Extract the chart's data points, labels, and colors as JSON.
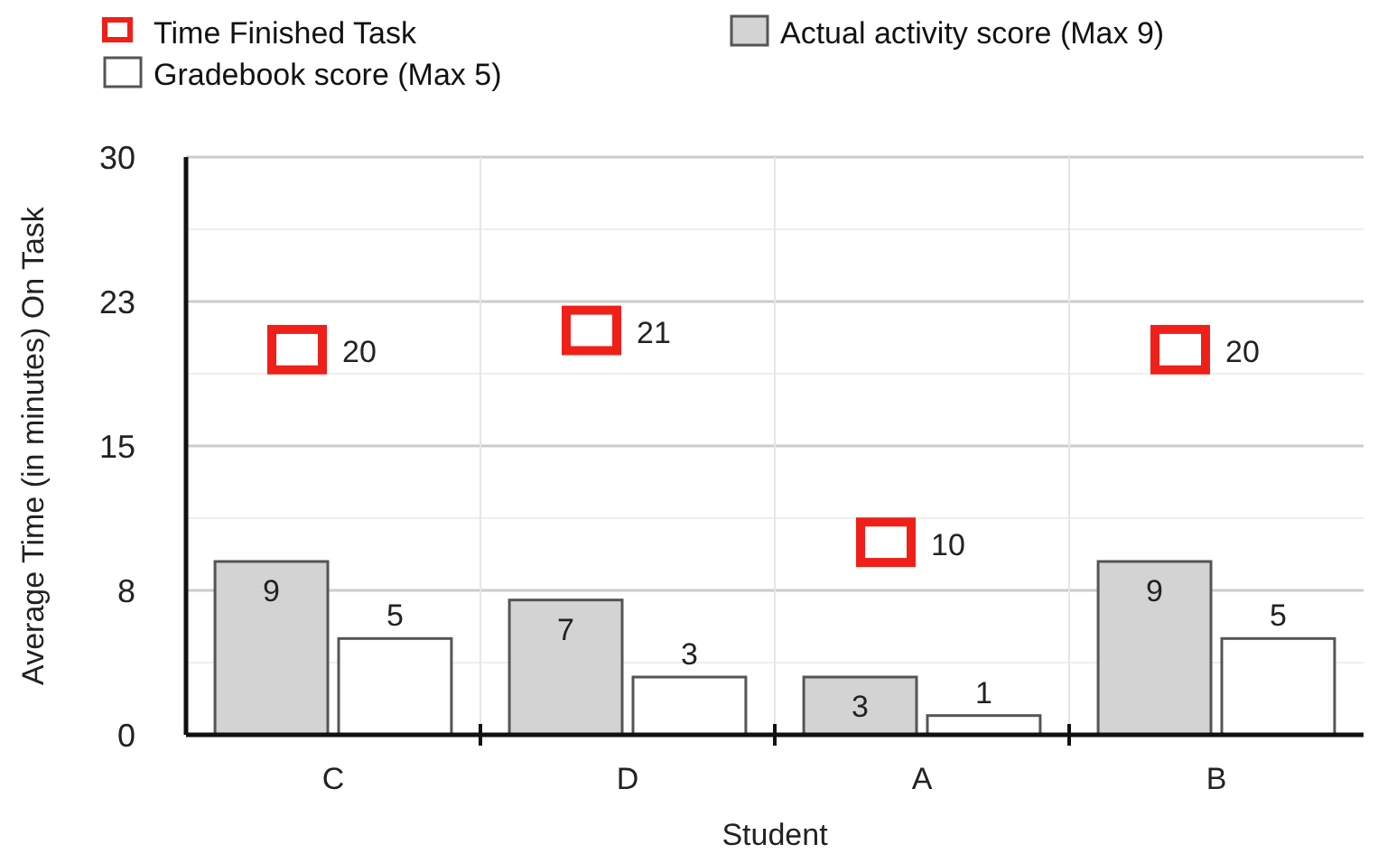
{
  "chart_data": {
    "type": "bar",
    "xlabel": "Student",
    "ylabel": "Average Time (in minutes) On Task",
    "categories": [
      "C",
      "D",
      "A",
      "B"
    ],
    "series": [
      {
        "name": "Actual activity score (Max 9)",
        "color": "#d3d3d3",
        "values": [
          9,
          7,
          3,
          9
        ]
      },
      {
        "name": "Gradebook score (Max 5)",
        "color": "#ffffff",
        "values": [
          5,
          3,
          1,
          5
        ]
      },
      {
        "name": "Time Finished Task",
        "type": "scatter",
        "color": "#ee2019",
        "marker": "square",
        "x": [
          "C",
          "D",
          "A",
          "B"
        ],
        "values": [
          20,
          21,
          10,
          20
        ]
      }
    ],
    "ylim": [
      0,
      30
    ],
    "yticks": [
      0,
      {
        "value": 3.75,
        "label": null
      },
      {
        "value": 7.5,
        "label": "8"
      },
      {
        "value": 11.25,
        "label": null
      },
      15,
      {
        "value": 18.75,
        "label": null
      },
      {
        "value": 22.5,
        "label": "23"
      },
      {
        "value": 26.25,
        "label": null
      },
      30
    ],
    "grid": true,
    "data_labels": true,
    "legend": "top"
  }
}
